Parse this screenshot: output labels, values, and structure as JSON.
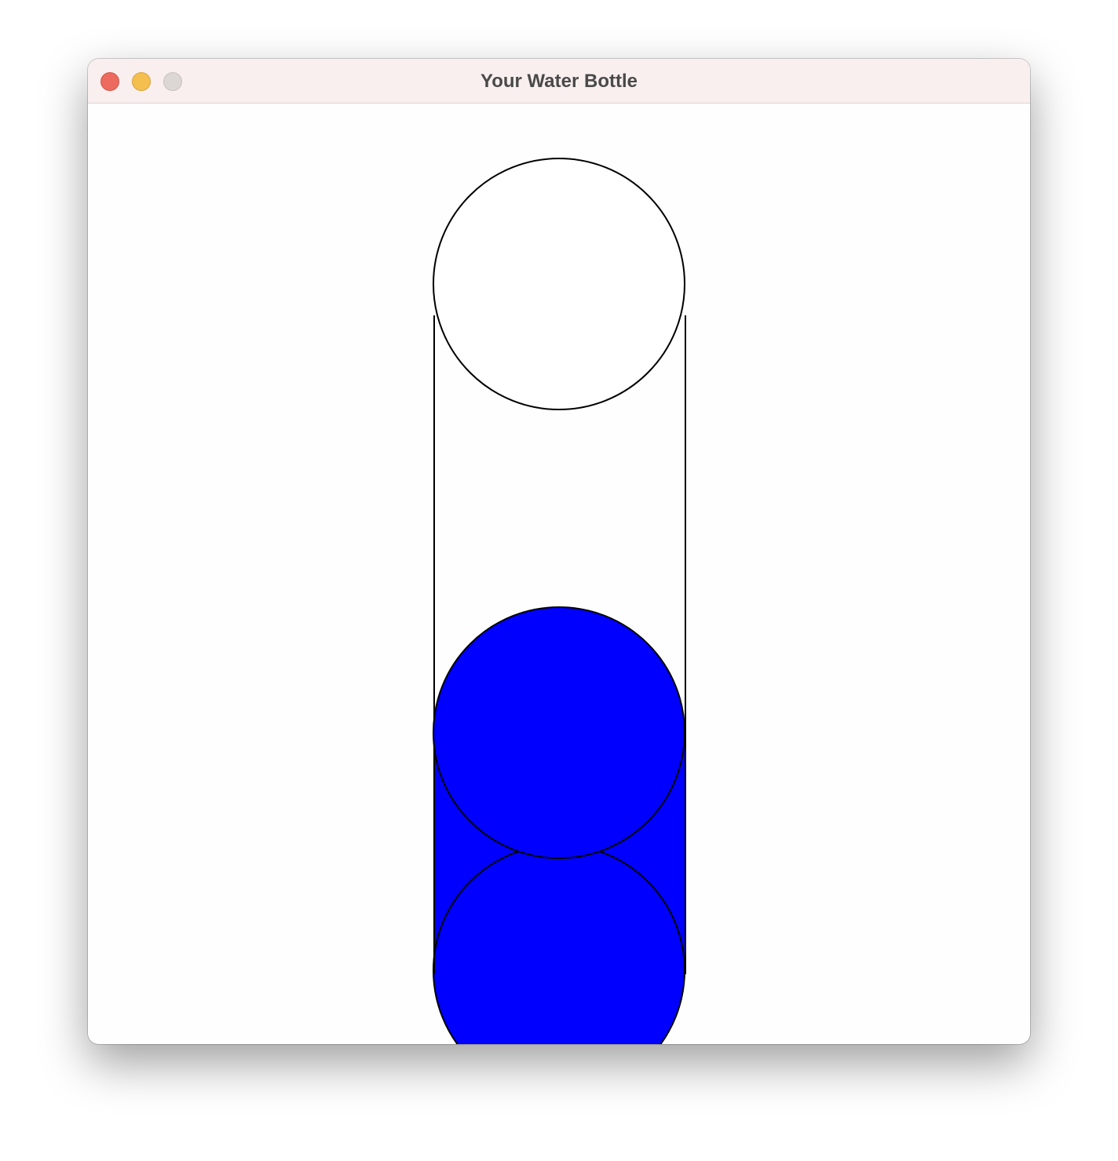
{
  "window": {
    "title": "Your Water Bottle"
  },
  "controls": {
    "close_icon": "close-icon",
    "minimize_icon": "minimize-icon",
    "zoom_icon": "zoom-icon"
  },
  "colors": {
    "water": "#0000ff",
    "outline": "#000000",
    "bottle_background": "#ffffff",
    "close": "#ed6a5e",
    "minimize": "#f5bf4f",
    "zoom_disabled": "#dcd6d5"
  },
  "bottle": {
    "fill_level": 0.41
  }
}
